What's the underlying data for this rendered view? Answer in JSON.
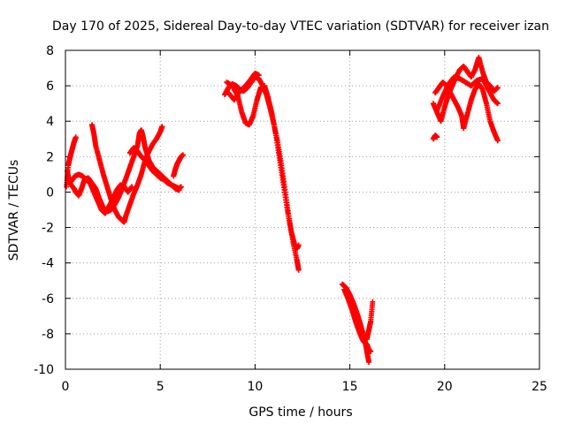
{
  "chart_data": {
    "type": "scatter",
    "title": "Day 170 of 2025, Sidereal Day-to-day VTEC variation (SDTVAR) for receiver izan",
    "xlabel": "GPS time / hours",
    "ylabel": "SDTVAR / TECUs",
    "xlim": [
      0,
      25
    ],
    "ylim": [
      -10,
      8
    ],
    "xticks": [
      0,
      5,
      10,
      15,
      20,
      25
    ],
    "yticks": [
      -10,
      -8,
      -6,
      -4,
      -2,
      0,
      2,
      4,
      6,
      8
    ],
    "xtick_labels": [
      "0",
      "5",
      "10",
      "15",
      "20",
      "25"
    ],
    "ytick_labels": [
      "-10",
      "-8",
      "-6",
      "-4",
      "-2",
      "0",
      "2",
      "4",
      "6",
      "8"
    ],
    "grid": true,
    "marker": "+",
    "series": [
      {
        "name": "SDTVAR",
        "color": "#ff0000",
        "traces": [
          [
            [
              0.1,
              1.2
            ],
            [
              0.2,
              0.6
            ],
            [
              0.3,
              0.4
            ],
            [
              0.45,
              0.2
            ],
            [
              0.55,
              0.0
            ],
            [
              0.7,
              -0.2
            ],
            [
              0.85,
              0.2
            ],
            [
              1.0,
              0.7
            ],
            [
              1.2,
              0.8
            ],
            [
              1.4,
              0.5
            ],
            [
              1.6,
              0.2
            ],
            [
              1.8,
              -0.4
            ],
            [
              2.0,
              -0.9
            ],
            [
              2.2,
              -1.1
            ],
            [
              2.4,
              -1.0
            ],
            [
              2.6,
              -0.7
            ],
            [
              2.8,
              -0.3
            ],
            [
              3.0,
              0.2
            ],
            [
              3.2,
              0.8
            ],
            [
              3.4,
              1.4
            ],
            [
              3.6,
              2.0
            ],
            [
              3.8,
              2.6
            ],
            [
              3.9,
              3.3
            ],
            [
              4.0,
              3.5
            ],
            [
              4.1,
              3.1
            ],
            [
              4.2,
              2.5
            ],
            [
              4.4,
              1.8
            ],
            [
              4.6,
              1.4
            ],
            [
              4.8,
              1.2
            ],
            [
              5.0,
              1.0
            ],
            [
              5.2,
              0.8
            ],
            [
              5.4,
              0.6
            ],
            [
              5.6,
              0.4
            ],
            [
              5.8,
              0.2
            ],
            [
              6.0,
              0.1
            ]
          ],
          [
            [
              0.05,
              0.3
            ],
            [
              0.15,
              1.5
            ],
            [
              0.25,
              2.0
            ],
            [
              0.35,
              2.4
            ],
            [
              0.45,
              2.8
            ],
            [
              0.55,
              3.1
            ]
          ],
          [
            [
              0.3,
              0.6
            ],
            [
              0.5,
              0.9
            ],
            [
              0.7,
              1.0
            ],
            [
              0.9,
              0.9
            ],
            [
              1.1,
              0.7
            ],
            [
              1.3,
              0.5
            ],
            [
              1.5,
              0.0
            ],
            [
              1.7,
              -0.5
            ],
            [
              1.9,
              -1.0
            ],
            [
              2.1,
              -1.2
            ],
            [
              2.3,
              -0.8
            ],
            [
              2.5,
              -0.4
            ],
            [
              2.7,
              0.1
            ],
            [
              2.9,
              0.4
            ],
            [
              3.1,
              0.3
            ],
            [
              3.3,
              0.0
            ],
            [
              3.5,
              0.3
            ]
          ],
          [
            [
              1.4,
              3.8
            ],
            [
              1.5,
              3.3
            ],
            [
              1.6,
              2.6
            ],
            [
              1.8,
              1.8
            ],
            [
              2.0,
              1.0
            ],
            [
              2.2,
              0.3
            ],
            [
              2.4,
              -0.4
            ],
            [
              2.6,
              -1.0
            ],
            [
              2.8,
              -1.4
            ],
            [
              3.0,
              -1.6
            ],
            [
              3.1,
              -1.7
            ],
            [
              3.2,
              -1.3
            ],
            [
              3.4,
              -0.7
            ],
            [
              3.6,
              -0.1
            ],
            [
              3.8,
              0.4
            ],
            [
              4.0,
              1.0
            ],
            [
              4.2,
              1.8
            ],
            [
              4.4,
              2.3
            ],
            [
              4.6,
              2.7
            ],
            [
              4.8,
              3.0
            ],
            [
              5.0,
              3.4
            ],
            [
              5.1,
              3.7
            ]
          ],
          [
            [
              3.4,
              2.2
            ],
            [
              3.6,
              2.5
            ],
            [
              3.8,
              2.3
            ],
            [
              4.0,
              2.0
            ],
            [
              4.2,
              1.8
            ],
            [
              4.4,
              1.5
            ],
            [
              4.6,
              1.2
            ],
            [
              4.8,
              1.0
            ],
            [
              5.0,
              0.8
            ],
            [
              5.2,
              0.7
            ],
            [
              5.4,
              0.5
            ],
            [
              5.6,
              0.4
            ],
            [
              5.8,
              0.3
            ],
            [
              6.0,
              0.2
            ],
            [
              6.1,
              0.3
            ]
          ],
          [
            [
              5.7,
              0.9
            ],
            [
              5.8,
              1.3
            ],
            [
              5.9,
              1.6
            ],
            [
              6.0,
              1.8
            ],
            [
              6.1,
              2.0
            ],
            [
              6.2,
              2.1
            ]
          ],
          [
            [
              8.4,
              5.5
            ],
            [
              8.6,
              5.9
            ],
            [
              8.8,
              6.1
            ],
            [
              9.0,
              6.0
            ],
            [
              9.2,
              5.8
            ],
            [
              9.4,
              5.7
            ],
            [
              9.6,
              5.9
            ],
            [
              9.8,
              6.2
            ],
            [
              10.0,
              6.5
            ],
            [
              10.2,
              6.4
            ],
            [
              10.4,
              6.0
            ],
            [
              10.6,
              5.5
            ],
            [
              10.8,
              4.7
            ],
            [
              11.0,
              3.8
            ],
            [
              11.2,
              2.8
            ],
            [
              11.4,
              1.5
            ],
            [
              11.6,
              0.0
            ],
            [
              11.8,
              -1.5
            ],
            [
              12.0,
              -2.8
            ],
            [
              12.2,
              -3.8
            ],
            [
              12.3,
              -4.4
            ]
          ],
          [
            [
              8.5,
              6.2
            ],
            [
              8.8,
              6.0
            ],
            [
              9.1,
              5.4
            ],
            [
              9.3,
              4.5
            ],
            [
              9.5,
              3.9
            ],
            [
              9.7,
              3.8
            ],
            [
              9.9,
              4.3
            ],
            [
              10.1,
              5.2
            ],
            [
              10.3,
              5.9
            ],
            [
              10.5,
              6.0
            ],
            [
              10.7,
              5.3
            ],
            [
              10.9,
              4.4
            ],
            [
              11.1,
              3.2
            ],
            [
              11.3,
              1.8
            ],
            [
              11.5,
              0.4
            ],
            [
              11.7,
              -1.0
            ],
            [
              11.9,
              -2.2
            ],
            [
              12.1,
              -3.0
            ],
            [
              12.2,
              -3.2
            ],
            [
              12.3,
              -3.0
            ]
          ],
          [
            [
              8.6,
              5.6
            ],
            [
              8.9,
              5.2
            ],
            [
              9.2,
              5.7
            ],
            [
              9.5,
              6.0
            ],
            [
              9.8,
              6.4
            ],
            [
              10.0,
              6.7
            ],
            [
              10.2,
              6.6
            ]
          ],
          [
            [
              14.6,
              -5.2
            ],
            [
              14.8,
              -5.4
            ],
            [
              15.0,
              -5.8
            ],
            [
              15.2,
              -6.3
            ],
            [
              15.4,
              -6.9
            ],
            [
              15.6,
              -7.6
            ],
            [
              15.8,
              -8.4
            ],
            [
              15.9,
              -9.0
            ],
            [
              16.0,
              -9.6
            ]
          ],
          [
            [
              14.7,
              -5.5
            ],
            [
              14.9,
              -6.0
            ],
            [
              15.1,
              -6.6
            ],
            [
              15.3,
              -7.3
            ],
            [
              15.5,
              -7.9
            ],
            [
              15.7,
              -8.4
            ],
            [
              15.9,
              -8.6
            ],
            [
              16.0,
              -8.9
            ],
            [
              16.1,
              -9.0
            ]
          ],
          [
            [
              15.9,
              -8.3
            ],
            [
              16.0,
              -7.8
            ],
            [
              16.1,
              -7.3
            ],
            [
              16.2,
              -6.2
            ]
          ],
          [
            [
              19.4,
              3.0
            ],
            [
              19.5,
              3.2
            ],
            [
              19.6,
              3.1
            ]
          ],
          [
            [
              19.4,
              5.0
            ],
            [
              19.6,
              4.5
            ],
            [
              19.8,
              4.0
            ],
            [
              20.0,
              4.8
            ],
            [
              20.2,
              5.5
            ],
            [
              20.4,
              6.0
            ],
            [
              20.6,
              6.5
            ],
            [
              20.8,
              6.9
            ],
            [
              21.0,
              7.1
            ],
            [
              21.2,
              6.8
            ],
            [
              21.4,
              6.5
            ],
            [
              21.6,
              6.9
            ],
            [
              21.8,
              7.6
            ],
            [
              22.0,
              6.8
            ],
            [
              22.2,
              6.2
            ],
            [
              22.4,
              6.0
            ],
            [
              22.6,
              5.7
            ],
            [
              22.8,
              5.9
            ]
          ],
          [
            [
              19.5,
              5.6
            ],
            [
              19.7,
              5.9
            ],
            [
              19.9,
              6.2
            ],
            [
              20.1,
              6.0
            ],
            [
              20.3,
              5.6
            ],
            [
              20.5,
              5.2
            ],
            [
              20.7,
              4.8
            ],
            [
              20.9,
              4.3
            ],
            [
              21.0,
              3.6
            ],
            [
              21.2,
              4.4
            ],
            [
              21.4,
              5.2
            ],
            [
              21.6,
              5.8
            ],
            [
              21.8,
              6.1
            ],
            [
              22.0,
              5.8
            ],
            [
              22.2,
              5.0
            ],
            [
              22.4,
              4.0
            ],
            [
              22.6,
              3.4
            ],
            [
              22.8,
              2.9
            ]
          ],
          [
            [
              19.6,
              4.6
            ],
            [
              19.9,
              5.4
            ],
            [
              20.2,
              6.1
            ],
            [
              20.5,
              6.5
            ],
            [
              20.8,
              6.4
            ],
            [
              21.1,
              6.2
            ],
            [
              21.4,
              6.0
            ],
            [
              21.7,
              6.3
            ],
            [
              22.0,
              6.4
            ],
            [
              22.3,
              5.8
            ],
            [
              22.6,
              5.2
            ],
            [
              22.8,
              5.0
            ]
          ]
        ]
      }
    ]
  }
}
